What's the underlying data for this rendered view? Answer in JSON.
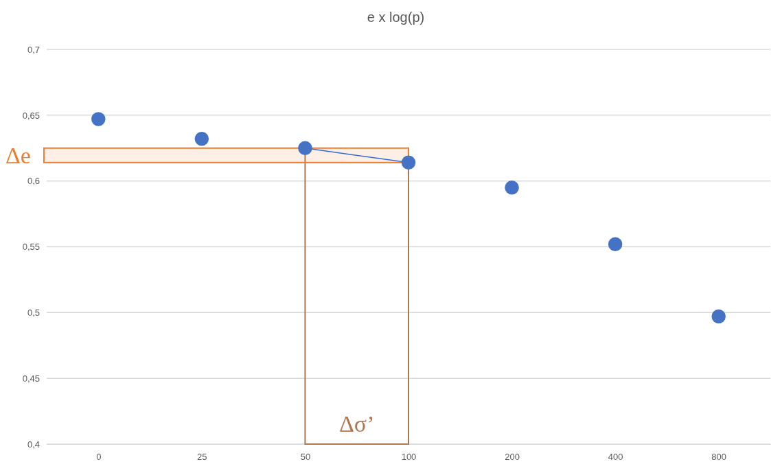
{
  "chart_data": {
    "type": "scatter",
    "title": "e x log(p)",
    "categories": [
      "0",
      "25",
      "50",
      "100",
      "200",
      "400",
      "800"
    ],
    "series": [
      {
        "color": "#4472c4",
        "values": [
          0.647,
          0.632,
          0.625,
          0.614,
          0.595,
          0.552,
          0.497
        ]
      },
      {
        "type": "line",
        "marker": "none",
        "color": "#2e6bd8",
        "x": [
          "50",
          "100"
        ],
        "values": [
          0.625,
          0.614
        ]
      }
    ],
    "ylim": [
      0.4,
      0.7
    ],
    "yticks": [
      {
        "value": 0.4,
        "label": "0,4"
      },
      {
        "value": 0.45,
        "label": "0,45"
      },
      {
        "value": 0.5,
        "label": "0,5"
      },
      {
        "value": 0.55,
        "label": "0,55"
      },
      {
        "value": 0.6,
        "label": "0,6"
      },
      {
        "value": 0.65,
        "label": "0,65"
      },
      {
        "value": 0.7,
        "label": "0,7"
      }
    ],
    "grid": "y",
    "marker": "circle",
    "line_style": "solid",
    "bands": [
      {
        "axis": "y",
        "from": 0.614,
        "to": 0.625,
        "label": "Δe",
        "color": "#ed7d31"
      }
    ],
    "annotations": [
      "Δσ’"
    ]
  }
}
